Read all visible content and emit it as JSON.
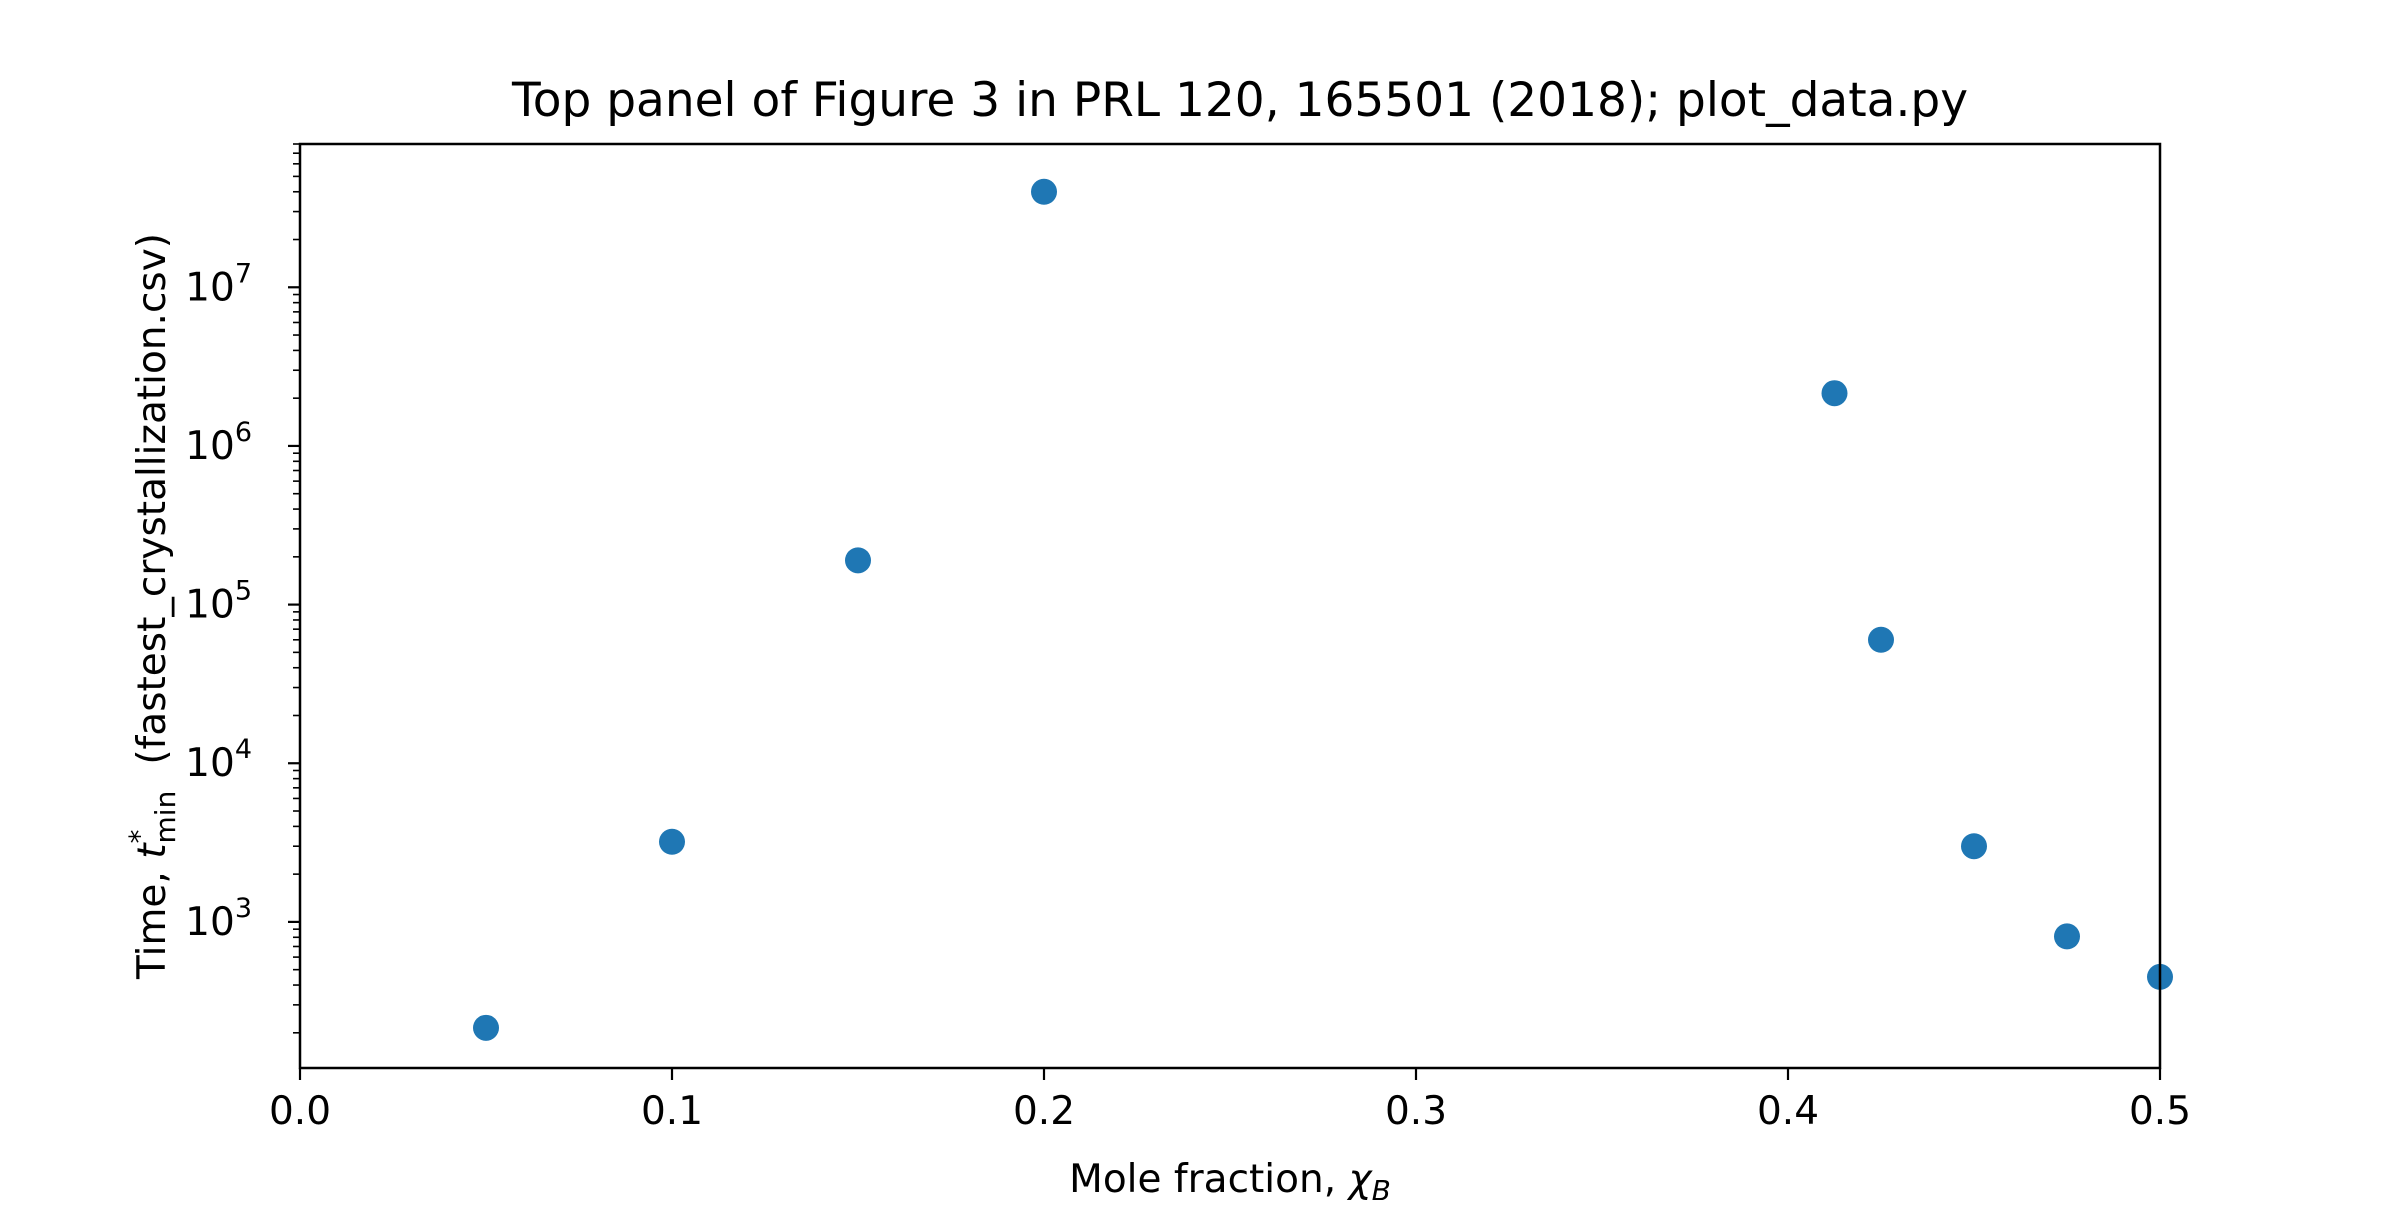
{
  "chart_data": {
    "type": "scatter",
    "title": "Top panel of Figure 3 in PRL 120, 165501 (2018); plot_data.py",
    "xlabel": {
      "prefix": "Mole fraction, ",
      "symbol": "χ",
      "subscript": "B"
    },
    "ylabel": {
      "prefix": "Time, ",
      "symbol": "t",
      "superscript": "*",
      "subscript": "min",
      "suffix": "(fastest_crystallization.csv)"
    },
    "xlim": [
      0.0,
      0.5
    ],
    "ylim": [
      120,
      80000000
    ],
    "yscale": "log",
    "xticks": [
      {
        "value": 0.0,
        "label": "0.0"
      },
      {
        "value": 0.1,
        "label": "0.1"
      },
      {
        "value": 0.2,
        "label": "0.2"
      },
      {
        "value": 0.3,
        "label": "0.3"
      },
      {
        "value": 0.4,
        "label": "0.4"
      },
      {
        "value": 0.5,
        "label": "0.5"
      }
    ],
    "yticks": [
      {
        "value": 1000,
        "base": "10",
        "exp": "3"
      },
      {
        "value": 10000,
        "base": "10",
        "exp": "4"
      },
      {
        "value": 100000,
        "base": "10",
        "exp": "5"
      },
      {
        "value": 1000000,
        "base": "10",
        "exp": "6"
      },
      {
        "value": 10000000,
        "base": "10",
        "exp": "7"
      }
    ],
    "grid": false,
    "legend": "none",
    "marker_color": "#1f77b4",
    "series": [
      {
        "x": [
          0.05,
          0.1,
          0.15,
          0.2,
          0.4125,
          0.425,
          0.45,
          0.475,
          0.5
        ],
        "y": [
          215,
          3200,
          190000,
          40000000,
          2150000,
          60000,
          3000,
          810,
          450
        ]
      }
    ]
  }
}
